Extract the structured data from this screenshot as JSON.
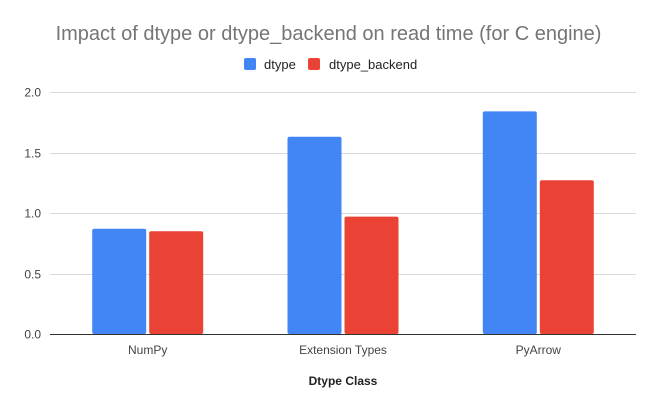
{
  "chart_data": {
    "type": "bar",
    "title": "Impact of dtype or dtype_backend on read time (for C engine)",
    "xlabel": "Dtype Class",
    "ylabel": "",
    "categories": [
      "NumPy",
      "Extension Types",
      "PyArrow"
    ],
    "series": [
      {
        "name": "dtype",
        "color": "#4285f4",
        "values": [
          0.87,
          1.63,
          1.84
        ]
      },
      {
        "name": "dtype_backend",
        "color": "#ea4335",
        "values": [
          0.85,
          0.97,
          1.27
        ]
      }
    ],
    "ylim": [
      0,
      2.0
    ],
    "yticks": [
      "0.0",
      "0.5",
      "1.0",
      "1.5",
      "2.0"
    ],
    "grid": true,
    "legend_position": "top-center"
  }
}
